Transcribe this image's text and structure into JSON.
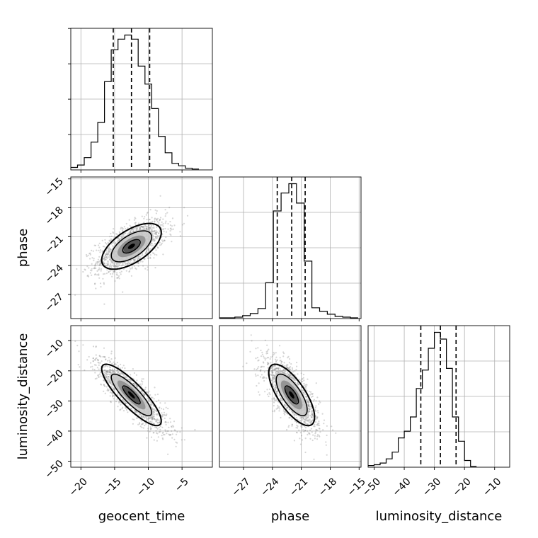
{
  "chart_data": {
    "type": "corner",
    "parameters": [
      "geocent_time",
      "phase",
      "luminosity_distance"
    ],
    "ranges": {
      "geocent_time": [
        -21.5,
        -0.5
      ],
      "phase": [
        -29.5,
        -14.8
      ],
      "luminosity_distance": [
        -52,
        -5
      ]
    },
    "ticks": {
      "geocent_time": [
        -20,
        -15,
        -10,
        -5
      ],
      "phase": [
        -27,
        -24,
        -21,
        -18,
        -15
      ],
      "luminosity_distance": [
        -50,
        -40,
        -30,
        -20,
        -10
      ]
    },
    "grid": true,
    "histograms": [
      {
        "parameter": "geocent_time",
        "bin_edges": [
          -21.5,
          -20.5,
          -19.5,
          -18.5,
          -17.5,
          -16.5,
          -15.5,
          -14.5,
          -13.5,
          -12.5,
          -11.5,
          -10.5,
          -9.5,
          -8.5,
          -7.5,
          -6.5,
          -5.5,
          -4.5,
          -3.5,
          -2.5
        ],
        "counts": [
          3,
          6,
          15,
          34,
          58,
          108,
          147,
          160,
          165,
          160,
          127,
          105,
          75,
          41,
          21,
          8,
          5,
          2,
          1
        ],
        "quantiles": [
          -15.2,
          -12.5,
          -9.8
        ]
      },
      {
        "parameter": "phase",
        "bin_edges": [
          -29.5,
          -28.7,
          -27.9,
          -27.1,
          -26.3,
          -25.5,
          -24.7,
          -23.9,
          -23.1,
          -22.3,
          -21.5,
          -20.7,
          -19.9,
          -19.1,
          -18.3,
          -17.5,
          -16.7,
          -15.9,
          -15.1
        ],
        "counts": [
          1,
          1,
          2,
          4,
          7,
          14,
          50,
          150,
          175,
          188,
          161,
          80,
          15,
          10,
          6,
          3,
          2,
          1
        ],
        "quantiles": [
          -23.5,
          -22.0,
          -20.6
        ]
      },
      {
        "parameter": "luminosity_distance",
        "bin_edges": [
          -52,
          -50,
          -48,
          -46,
          -44,
          -42,
          -40,
          -38,
          -36,
          -34,
          -32,
          -30,
          -28,
          -26,
          -24,
          -22,
          -20,
          -18,
          -16
        ],
        "counts": [
          2,
          3,
          5,
          10,
          18,
          35,
          43,
          60,
          94,
          116,
          142,
          161,
          153,
          118,
          60,
          31,
          8,
          1
        ],
        "quantiles": [
          -34.5,
          -28.0,
          -22.8
        ]
      }
    ],
    "pairs": [
      {
        "x": "geocent_time",
        "y": "phase",
        "mean": [
          -12.5,
          -22.0
        ],
        "sd": [
          2.6,
          1.4
        ],
        "corr": 0.6
      },
      {
        "x": "geocent_time",
        "y": "luminosity_distance",
        "mean": [
          -12.5,
          -28.0
        ],
        "sd": [
          2.6,
          6.0
        ],
        "corr": -0.85
      },
      {
        "x": "phase",
        "y": "luminosity_distance",
        "mean": [
          -22.0,
          -28.0
        ],
        "sd": [
          1.4,
          6.0
        ],
        "corr": -0.72
      }
    ],
    "colors": {
      "line": "#000000",
      "scatter": "#8a8a8a",
      "grid": "#b0b0b0",
      "density": [
        "#c9c9c9",
        "#8f8f8f",
        "#4e4e4e",
        "#000000"
      ]
    }
  }
}
